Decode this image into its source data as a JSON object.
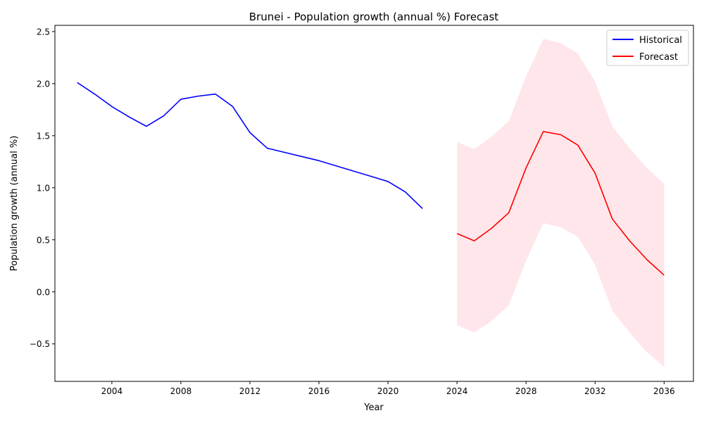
{
  "chart_data": {
    "type": "line",
    "title": "Brunei - Population growth (annual %) Forecast",
    "xlabel": "Year",
    "ylabel": "Population growth (annual %)",
    "xlim": [
      2000.7,
      2037.7
    ],
    "ylim": [
      -0.86,
      2.56
    ],
    "xticks": [
      2004,
      2008,
      2012,
      2016,
      2020,
      2024,
      2028,
      2032,
      2036
    ],
    "yticks": [
      -0.5,
      0.0,
      0.5,
      1.0,
      1.5,
      2.0,
      2.5
    ],
    "ytick_labels": [
      "−0.5",
      "0.0",
      "0.5",
      "1.0",
      "1.5",
      "2.0",
      "2.5"
    ],
    "grid": false,
    "legend_position": "top-right",
    "series": [
      {
        "name": "Historical",
        "color": "#0000ff",
        "x": [
          2002,
          2003,
          2004,
          2005,
          2006,
          2007,
          2008,
          2009,
          2010,
          2011,
          2012,
          2013,
          2014,
          2015,
          2016,
          2017,
          2018,
          2019,
          2020,
          2021,
          2022
        ],
        "y": [
          2.01,
          1.9,
          1.78,
          1.68,
          1.59,
          1.69,
          1.85,
          1.88,
          1.9,
          1.78,
          1.53,
          1.38,
          1.34,
          1.3,
          1.26,
          1.21,
          1.16,
          1.11,
          1.06,
          0.96,
          0.8
        ]
      },
      {
        "name": "Forecast",
        "color": "#ff0000",
        "x": [
          2024,
          2025,
          2026,
          2027,
          2028,
          2029,
          2030,
          2031,
          2032,
          2033,
          2034,
          2035,
          2036
        ],
        "y": [
          0.56,
          0.49,
          0.61,
          0.76,
          1.19,
          1.54,
          1.51,
          1.41,
          1.14,
          0.7,
          0.49,
          0.31,
          0.16
        ]
      }
    ],
    "confidence_band": {
      "color": "#ffc0cb",
      "x": [
        2024,
        2025,
        2026,
        2027,
        2028,
        2029,
        2030,
        2031,
        2032,
        2033,
        2034,
        2035,
        2036
      ],
      "lower": [
        -0.32,
        -0.39,
        -0.28,
        -0.13,
        0.3,
        0.66,
        0.62,
        0.53,
        0.26,
        -0.18,
        -0.39,
        -0.58,
        -0.72
      ],
      "upper": [
        1.44,
        1.37,
        1.49,
        1.64,
        2.07,
        2.43,
        2.39,
        2.29,
        2.02,
        1.59,
        1.38,
        1.19,
        1.04
      ]
    }
  }
}
